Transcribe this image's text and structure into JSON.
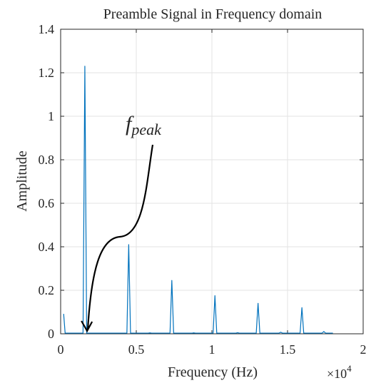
{
  "chart_data": {
    "type": "line",
    "title": "Preamble Signal in Frequency domain",
    "xlabel": "Frequency (Hz)",
    "ylabel": "Amplitude",
    "x_multiplier_label": "×10",
    "x_multiplier_exp": "4",
    "xlim": [
      0,
      20000
    ],
    "ylim": [
      0,
      1.4
    ],
    "xticks": [
      0,
      5000,
      10000,
      15000,
      20000
    ],
    "xtick_labels": [
      "0",
      "0.5",
      "1",
      "1.5",
      "2"
    ],
    "yticks": [
      0,
      0.2,
      0.4,
      0.6,
      0.8,
      1,
      1.2,
      1.4
    ],
    "ytick_labels": [
      "0",
      "0.2",
      "0.4",
      "0.6",
      "0.8",
      "1",
      "1.2",
      "1.4"
    ],
    "grid": true,
    "line_color": "#0072BD",
    "series": [
      {
        "peaks": [
          {
            "x": 200,
            "y": 0.09
          },
          {
            "x": 1600,
            "y": 1.23
          },
          {
            "x": 4500,
            "y": 0.41
          },
          {
            "x": 7350,
            "y": 0.245
          },
          {
            "x": 10200,
            "y": 0.175
          },
          {
            "x": 13050,
            "y": 0.14
          },
          {
            "x": 15950,
            "y": 0.12
          },
          {
            "x": 5900,
            "y": 0.004
          },
          {
            "x": 8800,
            "y": 0.004
          },
          {
            "x": 11700,
            "y": 0.005
          },
          {
            "x": 14550,
            "y": 0.007
          },
          {
            "x": 17400,
            "y": 0.01
          }
        ],
        "x_end": 18000
      }
    ],
    "annotation": {
      "label": "f",
      "subscript": "peak",
      "arrow_target_x": 1750,
      "arrow_target_y": 0.0
    }
  }
}
